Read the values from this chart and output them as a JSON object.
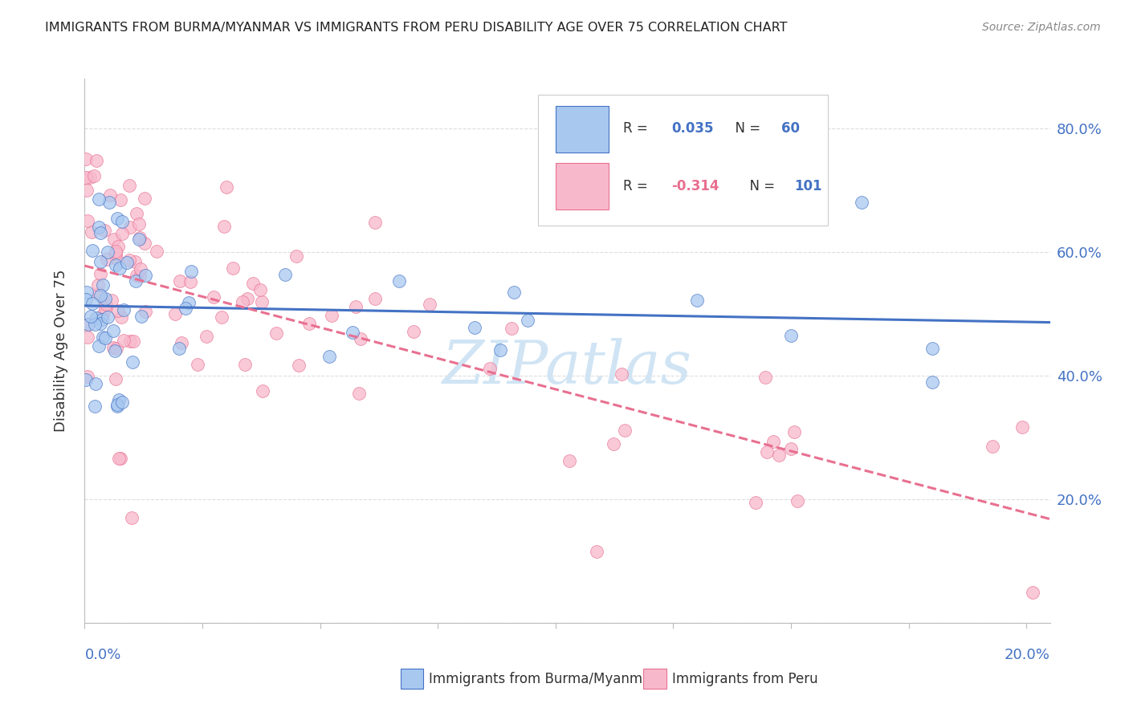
{
  "title": "IMMIGRANTS FROM BURMA/MYANMAR VS IMMIGRANTS FROM PERU DISABILITY AGE OVER 75 CORRELATION CHART",
  "source": "Source: ZipAtlas.com",
  "ylabel": "Disability Age Over 75",
  "legend_burma": "Immigrants from Burma/Myanmar",
  "legend_peru": "Immigrants from Peru",
  "R_burma": 0.035,
  "N_burma": 60,
  "R_peru": -0.314,
  "N_peru": 101,
  "color_burma_fill": "#A8C8F0",
  "color_burma_edge": "#4472C4",
  "color_peru_fill": "#F8B8CC",
  "color_peru_edge": "#E87090",
  "color_burma_line": "#4472C4",
  "color_peru_line": "#E87090",
  "color_axis_labels": "#4472C4",
  "color_text": "#222222",
  "color_source": "#888888",
  "color_watermark": "#D0E4F4",
  "color_grid": "#DDDDDD",
  "xmin": 0.0,
  "xmax": 0.205,
  "ymin": 0.0,
  "ymax": 0.88,
  "background_color": "#FFFFFF",
  "ytick_positions": [
    0.0,
    0.2,
    0.4,
    0.6,
    0.8
  ],
  "ytick_labels": [
    "",
    "20.0%",
    "40.0%",
    "60.0%",
    "80.0%"
  ]
}
